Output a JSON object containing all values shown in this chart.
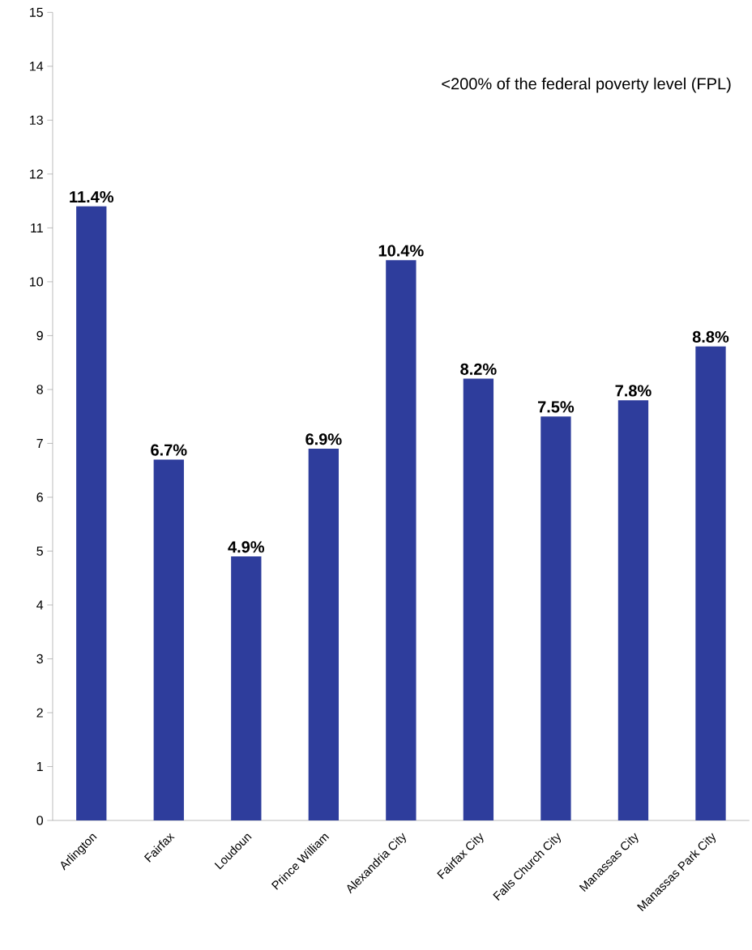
{
  "chart_data": {
    "type": "bar",
    "title": "<200% of the federal poverty level (FPL)",
    "categories": [
      "Arlington",
      "Fairfax",
      "Loudoun",
      "Prince William",
      "Alexandria City",
      "Fairfax City",
      "Falls Church City",
      "Manassas City",
      "Manassas Park City"
    ],
    "values": [
      11.4,
      6.7,
      4.9,
      6.9,
      10.4,
      8.2,
      7.5,
      7.8,
      8.8
    ],
    "value_labels": [
      "11.4%",
      "6.7%",
      "4.9%",
      "6.9%",
      "10.4%",
      "8.2%",
      "7.5%",
      "7.8%",
      "8.8%"
    ],
    "color": "#2e3d9c",
    "ylim": [
      0,
      15
    ],
    "yticks": [
      0,
      1,
      2,
      3,
      4,
      5,
      6,
      7,
      8,
      9,
      10,
      11,
      12,
      13,
      14,
      15
    ]
  }
}
